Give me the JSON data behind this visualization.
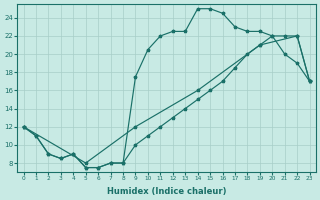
{
  "xlabel": "Humidex (Indice chaleur)",
  "bg_color": "#c8eae4",
  "grid_color": "#a8cec8",
  "line_color": "#1a7068",
  "xlim_min": -0.5,
  "xlim_max": 23.5,
  "ylim_min": 7,
  "ylim_max": 25.5,
  "xticks": [
    0,
    1,
    2,
    3,
    4,
    5,
    6,
    7,
    8,
    9,
    10,
    11,
    12,
    13,
    14,
    15,
    16,
    17,
    18,
    19,
    20,
    21,
    22,
    23
  ],
  "yticks": [
    8,
    10,
    12,
    14,
    16,
    18,
    20,
    22,
    24
  ],
  "curve1_x": [
    0,
    1,
    2,
    3,
    4,
    5,
    6,
    7,
    8,
    9,
    10,
    11,
    12,
    13,
    14,
    15,
    16,
    17,
    18,
    19,
    20,
    21,
    22,
    23
  ],
  "curve1_y": [
    12,
    11,
    9,
    8.5,
    9,
    7.5,
    7.5,
    8,
    8,
    17.5,
    20.5,
    22,
    22.5,
    22.5,
    25,
    25,
    24.5,
    23,
    22.5,
    22.5,
    22,
    20,
    19,
    17
  ],
  "curve2_x": [
    0,
    1,
    2,
    3,
    4,
    5,
    6,
    7,
    8,
    9,
    10,
    11,
    12,
    13,
    14,
    15,
    16,
    17,
    18,
    19,
    20,
    21,
    22,
    23
  ],
  "curve2_y": [
    12,
    11,
    9,
    8.5,
    9,
    7.5,
    7.5,
    8,
    8,
    10,
    11,
    12,
    13,
    14,
    15,
    16,
    17,
    18.5,
    20,
    21,
    22,
    22,
    22,
    17
  ],
  "curve3_x": [
    0,
    5,
    9,
    14,
    19,
    22,
    23
  ],
  "curve3_y": [
    12,
    8,
    12,
    16,
    21,
    22,
    17
  ]
}
